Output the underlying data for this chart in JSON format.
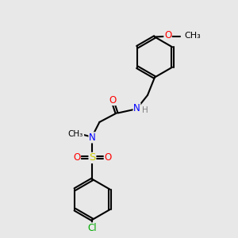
{
  "bg_color": "#e8e8e8",
  "bond_color": "#000000",
  "bond_lw": 1.5,
  "colors": {
    "C": "#000000",
    "N": "#0000FF",
    "O": "#FF0000",
    "S": "#CCCC00",
    "Cl": "#00AA00",
    "H": "#808080"
  },
  "font_size": 8.5,
  "figsize": [
    3.0,
    3.0
  ],
  "dpi": 100
}
